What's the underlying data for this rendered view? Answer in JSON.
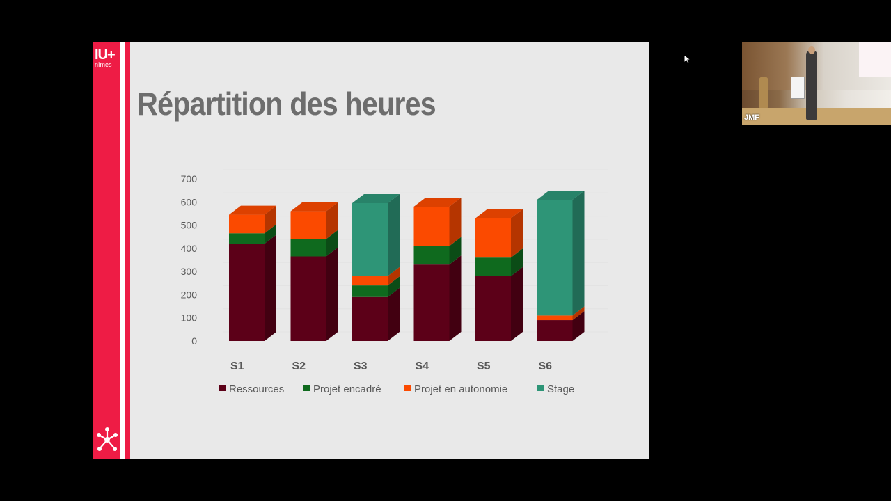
{
  "slide": {
    "title": "Répartition des heures",
    "logo_main": "IU+",
    "logo_sub": "nîmes"
  },
  "webcam": {
    "participant_label": "JMF"
  },
  "colors": {
    "accent": "#ee1c45",
    "ressources": "#5c0018",
    "projet_encadre": "#0f6a1e",
    "projet_autonomie": "#fb4a00",
    "stage": "#2e9577"
  },
  "chart_data": {
    "type": "bar",
    "stacked": true,
    "three_d": true,
    "categories": [
      "S1",
      "S2",
      "S3",
      "S4",
      "S5",
      "S6"
    ],
    "ylim": [
      0,
      700
    ],
    "yticks": [
      "0",
      "100",
      "200",
      "300",
      "400",
      "500",
      "600",
      "700"
    ],
    "legend_position": "bottom",
    "series": [
      {
        "name": "Ressources",
        "color": "#5c0018",
        "values": [
          420,
          365,
          190,
          330,
          280,
          90
        ]
      },
      {
        "name": "Projet encadré",
        "color": "#0f6a1e",
        "values": [
          45,
          75,
          50,
          80,
          80,
          0
        ]
      },
      {
        "name": "Projet en autonomie",
        "color": "#fb4a00",
        "values": [
          80,
          120,
          40,
          170,
          170,
          20
        ]
      },
      {
        "name": "Stage",
        "color": "#2e9577",
        "values": [
          0,
          0,
          315,
          0,
          0,
          500
        ]
      }
    ]
  }
}
